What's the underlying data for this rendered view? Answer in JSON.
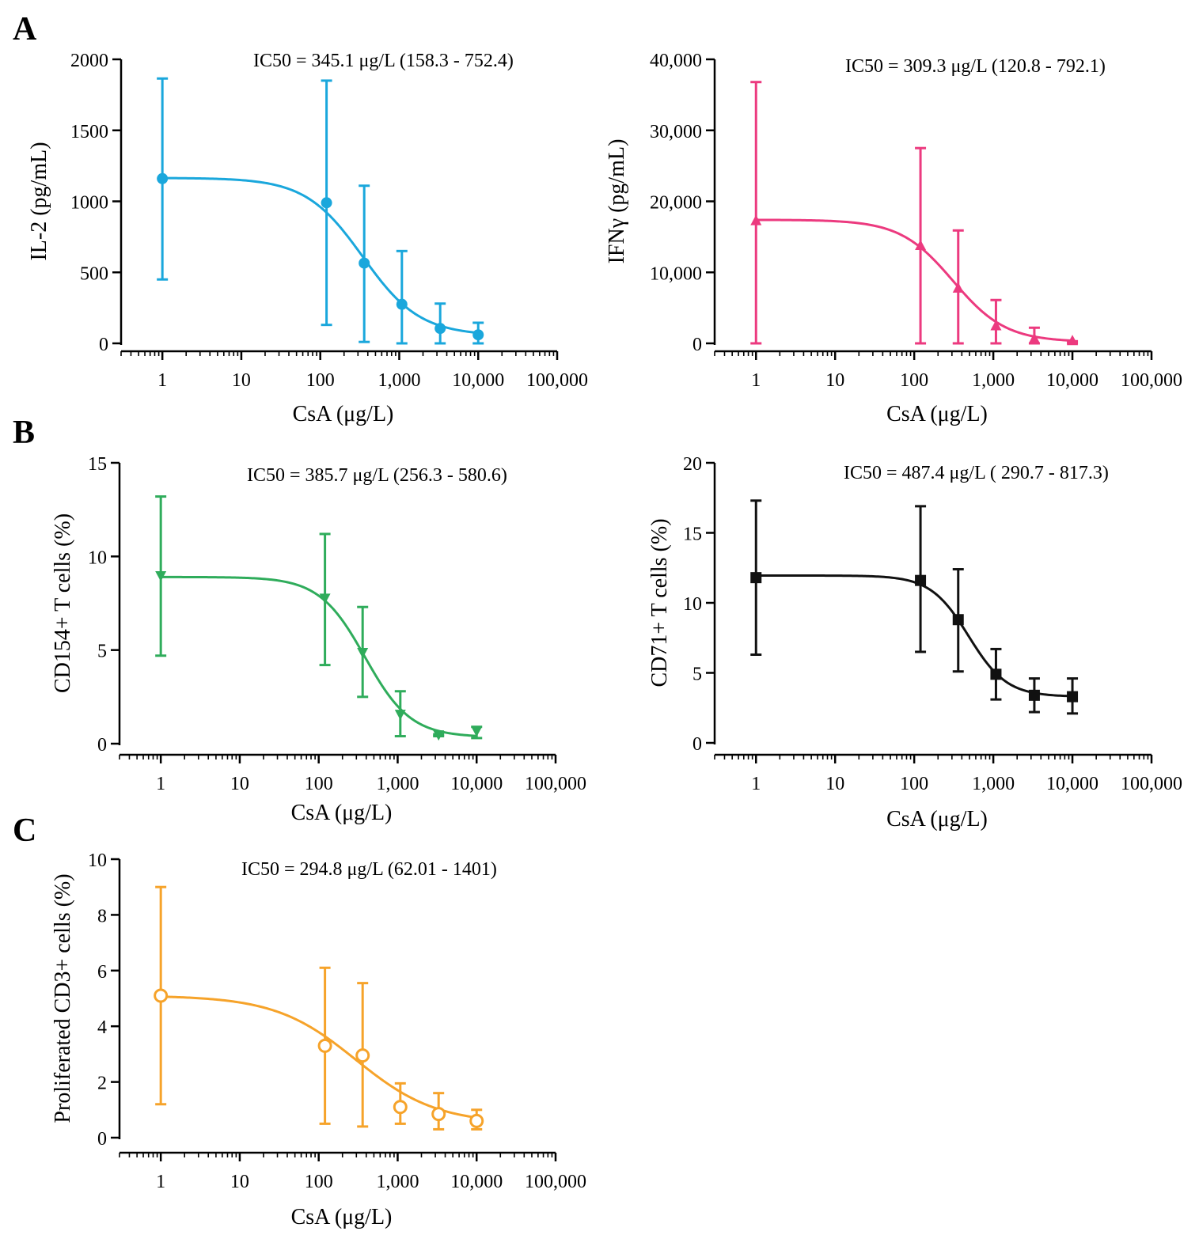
{
  "panel_labels": [
    "A",
    "B",
    "C"
  ],
  "chart_data": [
    {
      "id": "A1",
      "type": "scatter",
      "title": "",
      "annotation": "IC50 = 345.1 μg/L  (158.3 - 752.4)",
      "xlabel": "CsA (μg/L)",
      "ylabel": "IL-2 (pg/mL)",
      "xscale": "log",
      "xlim": [
        0.3,
        100000
      ],
      "xticks": [
        1,
        10,
        100,
        1000,
        10000,
        100000
      ],
      "xtick_labels": [
        "1",
        "10",
        "100",
        "1,000",
        "10,000",
        "100,000"
      ],
      "ylim": [
        0,
        2000
      ],
      "yticks": [
        0,
        500,
        1000,
        1500,
        2000
      ],
      "ytick_labels": [
        "0",
        "500",
        "1000",
        "1500",
        "2000"
      ],
      "color": "#1aa7dc",
      "marker": "circle",
      "x": [
        1,
        120,
        360,
        1080,
        3300,
        10000
      ],
      "y": [
        1160,
        990,
        565,
        275,
        105,
        60
      ],
      "err_low": [
        450,
        130,
        10,
        0,
        0,
        0
      ],
      "err_high": [
        1865,
        1850,
        1110,
        650,
        280,
        145
      ],
      "fit": {
        "top": 1165,
        "bottom": 55,
        "ic50": 345.1,
        "hill": 1.2
      },
      "ci": [
        158.3,
        752.4
      ]
    },
    {
      "id": "A2",
      "type": "scatter",
      "title": "",
      "annotation": "IC50 = 309.3 μg/L  (120.8 - 792.1)",
      "xlabel": "CsA (μg/L)",
      "ylabel": "IFNγ (pg/mL)",
      "xscale": "log",
      "xlim": [
        0.3,
        100000
      ],
      "xticks": [
        1,
        10,
        100,
        1000,
        10000,
        100000
      ],
      "xtick_labels": [
        "1",
        "10",
        "100",
        "1,000",
        "10,000",
        "100,000"
      ],
      "ylim": [
        0,
        40000
      ],
      "yticks": [
        0,
        10000,
        20000,
        30000,
        40000
      ],
      "ytick_labels": [
        "0",
        "10,000",
        "20,000",
        "30,000",
        "40,000"
      ],
      "color": "#ec3a7f",
      "marker": "triangle-up",
      "x": [
        1,
        120,
        360,
        1080,
        3300,
        10000
      ],
      "y": [
        17200,
        13700,
        7700,
        2400,
        600,
        300
      ],
      "err_low": [
        0,
        0,
        0,
        0,
        0,
        0
      ],
      "err_high": [
        36800,
        27500,
        15900,
        6100,
        2200,
        300
      ],
      "fit": {
        "top": 17400,
        "bottom": 200,
        "ic50": 309.3,
        "hill": 1.3
      },
      "ci": [
        120.8,
        792.1
      ]
    },
    {
      "id": "B1",
      "type": "scatter",
      "title": "",
      "annotation": "IC50 = 385.7 μg/L  (256.3 - 580.6)",
      "xlabel": "CsA (μg/L)",
      "ylabel": "CD154+ T cells (%)",
      "xscale": "log",
      "xlim": [
        0.3,
        100000
      ],
      "xticks": [
        1,
        10,
        100,
        1000,
        10000,
        100000
      ],
      "xtick_labels": [
        "1",
        "10",
        "100",
        "1,000",
        "10,000",
        "100,000"
      ],
      "ylim": [
        0,
        15
      ],
      "yticks": [
        0,
        5,
        10,
        15
      ],
      "ytick_labels": [
        "0",
        "5",
        "10",
        "15"
      ],
      "color": "#2fac5b",
      "marker": "triangle-down",
      "x": [
        1,
        120,
        360,
        1080,
        3300,
        10000
      ],
      "y": [
        9.0,
        7.8,
        4.9,
        1.6,
        0.5,
        0.7
      ],
      "err_low": [
        4.7,
        4.2,
        2.5,
        0.4,
        0.4,
        0.3
      ],
      "err_high": [
        13.2,
        11.2,
        7.3,
        2.8,
        0.5,
        0.9
      ],
      "fit": {
        "top": 8.9,
        "bottom": 0.35,
        "ic50": 385.7,
        "hill": 1.5
      },
      "ci": [
        256.3,
        580.6
      ]
    },
    {
      "id": "B2",
      "type": "scatter",
      "title": "",
      "annotation": "IC50 = 487.4 μg/L ( 290.7 - 817.3)",
      "xlabel": "CsA (μg/L)",
      "ylabel": "CD71+ T cells (%)",
      "xscale": "log",
      "xlim": [
        0.3,
        100000
      ],
      "xticks": [
        1,
        10,
        100,
        1000,
        10000,
        100000
      ],
      "xtick_labels": [
        "1",
        "10",
        "100",
        "1,000",
        "10,000",
        "100,000"
      ],
      "ylim": [
        0,
        20
      ],
      "yticks": [
        0,
        5,
        10,
        15,
        20
      ],
      "ytick_labels": [
        "0",
        "5",
        "10",
        "15",
        "20"
      ],
      "color": "#111111",
      "marker": "square",
      "x": [
        1,
        120,
        360,
        1080,
        3300,
        10000
      ],
      "y": [
        11.8,
        11.6,
        8.8,
        4.9,
        3.4,
        3.3
      ],
      "err_low": [
        6.3,
        6.5,
        5.1,
        3.1,
        2.2,
        2.1
      ],
      "err_high": [
        17.3,
        16.9,
        12.4,
        6.7,
        4.6,
        4.6
      ],
      "fit": {
        "top": 11.95,
        "bottom": 3.3,
        "ic50": 487.4,
        "hill": 1.8
      },
      "ci": [
        290.7,
        817.3
      ]
    },
    {
      "id": "C",
      "type": "scatter",
      "title": "",
      "annotation": "IC50 = 294.8 μg/L  (62.01 - 1401)",
      "xlabel": "CsA (μg/L)",
      "ylabel": "Proliferated CD3+ cells (%)",
      "xscale": "log",
      "xlim": [
        0.3,
        100000
      ],
      "xticks": [
        1,
        10,
        100,
        1000,
        10000,
        100000
      ],
      "xtick_labels": [
        "1",
        "10",
        "100",
        "1,000",
        "10,000",
        "100,000"
      ],
      "ylim": [
        0,
        10
      ],
      "yticks": [
        0,
        2,
        4,
        6,
        8,
        10
      ],
      "ytick_labels": [
        "0",
        "2",
        "4",
        "6",
        "8",
        "10"
      ],
      "color": "#f6a32a",
      "marker": "open-circle",
      "x": [
        1,
        120,
        360,
        1080,
        3300,
        10000
      ],
      "y": [
        5.1,
        3.3,
        2.95,
        1.1,
        0.85,
        0.6
      ],
      "err_low": [
        1.2,
        0.5,
        0.4,
        0.5,
        0.3,
        0.3
      ],
      "err_high": [
        9.0,
        6.1,
        5.55,
        1.95,
        1.6,
        1.0
      ],
      "fit": {
        "top": 5.1,
        "bottom": 0.5,
        "ic50": 294.8,
        "hill": 0.85
      },
      "ci": [
        62.01,
        1401
      ]
    }
  ]
}
